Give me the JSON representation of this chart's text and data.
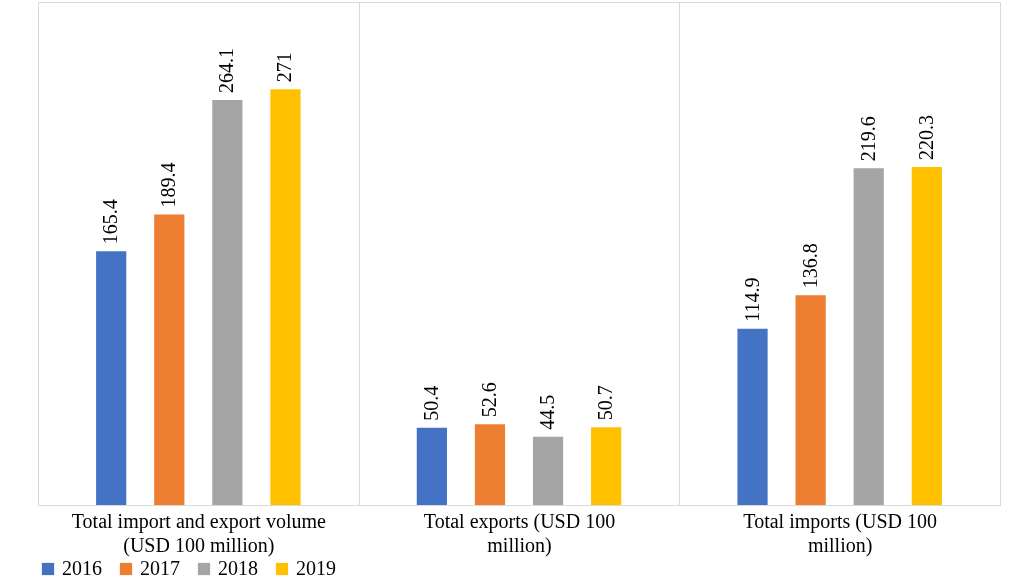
{
  "chart_data": {
    "type": "bar",
    "categories": [
      "Total import and export volume (USD 100 million)",
      "Total exports (USD 100 million)",
      "Total imports (USD 100 million)"
    ],
    "series": [
      {
        "name": "2016",
        "color": "#4472c4",
        "values": [
          165.4,
          50.4,
          114.9
        ]
      },
      {
        "name": "2017",
        "color": "#ed7d31",
        "values": [
          189.4,
          52.6,
          136.8
        ]
      },
      {
        "name": "2018",
        "color": "#a5a5a5",
        "values": [
          264.1,
          44.5,
          219.6
        ]
      },
      {
        "name": "2019",
        "color": "#ffc000",
        "values": [
          271,
          50.7,
          220.3
        ]
      }
    ],
    "relative": false,
    "data_labels": true,
    "legend": "bottom",
    "grid": "x"
  }
}
